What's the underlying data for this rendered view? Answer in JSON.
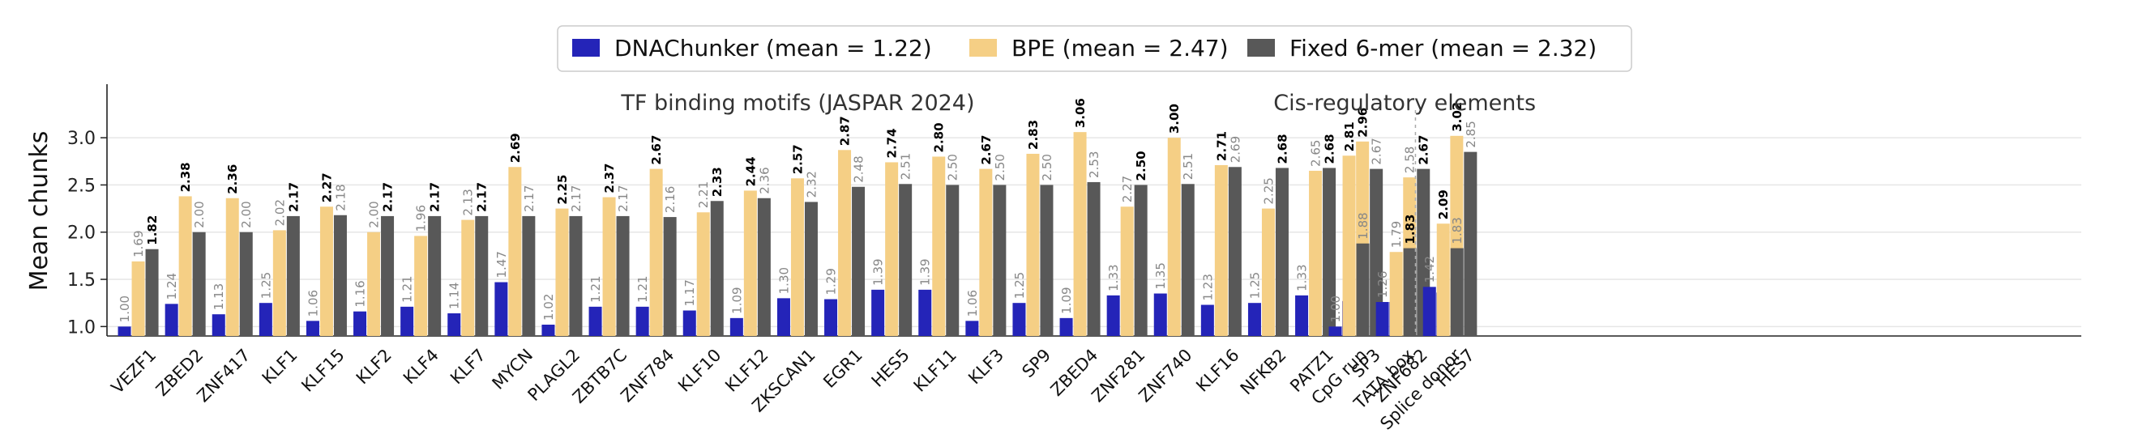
{
  "chart_data": {
    "type": "bar",
    "ylabel": "Mean chunks",
    "ylim": [
      0.9,
      3.55
    ],
    "yticks": [
      1.0,
      1.5,
      2.0,
      2.5,
      3.0
    ],
    "grid": "y",
    "legend_position": "top-center",
    "groups": [
      {
        "title": "TF binding motifs (JASPAR 2024)",
        "categories": [
          "VEZF1",
          "ZBED2",
          "ZNF417",
          "KLF1",
          "KLF15",
          "KLF2",
          "KLF4",
          "KLF7",
          "MYCN",
          "PLAGL2",
          "ZBTB7C",
          "ZNF784",
          "KLF10",
          "KLF12",
          "ZKSCAN1",
          "EGR1",
          "HES5",
          "KLF11",
          "KLF3",
          "SP9",
          "ZBED4",
          "ZNF281",
          "ZNF740",
          "KLF16",
          "NFKB2",
          "PATZ1",
          "SP3",
          "ZNF682",
          "HES7"
        ]
      },
      {
        "title": "Cis-regulatory elements",
        "categories": [
          "CpG run",
          "TATA box",
          "Splice donor"
        ]
      }
    ],
    "series": [
      {
        "name": "DNAChunker",
        "legend_label": "DNAChunker  (mean = 1.22)",
        "color": "#2424b8",
        "values": [
          1.0,
          1.24,
          1.13,
          1.25,
          1.06,
          1.16,
          1.21,
          1.14,
          1.47,
          1.02,
          1.21,
          1.21,
          1.17,
          1.09,
          1.3,
          1.29,
          1.39,
          1.39,
          1.06,
          1.25,
          1.09,
          1.33,
          1.35,
          1.23,
          1.25,
          1.33,
          1.27,
          1.26,
          1.36,
          1.0,
          1.26,
          1.42
        ],
        "labels": [
          "1.00",
          "1.24",
          "1.13",
          "1.25",
          "1.06",
          "1.16",
          "1.21",
          "1.14",
          "1.47",
          "1.02",
          "1.21",
          "1.21",
          "1.17",
          "1.09",
          "1.30",
          "1.29",
          "1.39",
          "1.39",
          "1.06",
          "1.25",
          "1.09",
          "1.33",
          "1.35",
          "1.23",
          "1.25",
          "1.33",
          "1.27",
          "1.26",
          "1.36",
          "1.00",
          "1.26",
          "1.42"
        ]
      },
      {
        "name": "BPE",
        "legend_label": "BPE  (mean = 2.47)",
        "color": "#f5cf85",
        "values": [
          1.69,
          2.38,
          2.36,
          2.02,
          2.27,
          2.0,
          1.96,
          2.13,
          2.69,
          2.25,
          2.37,
          2.67,
          2.21,
          2.44,
          2.57,
          2.87,
          2.74,
          2.8,
          2.67,
          2.83,
          3.06,
          2.27,
          3.0,
          2.71,
          2.25,
          2.65,
          2.96,
          2.58,
          3.02,
          2.81,
          1.79,
          2.09
        ],
        "labels": [
          "1.69",
          "2.38",
          "2.36",
          "2.02",
          "2.27",
          "2.00",
          "1.96",
          "2.13",
          "2.69",
          "2.25",
          "2.37",
          "2.67",
          "2.21",
          "2.44",
          "2.57",
          "2.87",
          "2.74",
          "2.80",
          "2.67",
          "2.83",
          "3.06",
          "2.27",
          "3.00",
          "2.71",
          "2.25",
          "2.65",
          "2.96",
          "2.58",
          "3.02",
          "2.81",
          "1.79",
          "2.09"
        ]
      },
      {
        "name": "Fixed 6-mer",
        "legend_label": "Fixed 6-mer  (mean = 2.32)",
        "color": "#585858",
        "values": [
          1.82,
          2.0,
          2.0,
          2.17,
          2.18,
          2.17,
          2.17,
          2.17,
          2.17,
          2.17,
          2.17,
          2.16,
          2.33,
          2.36,
          2.32,
          2.48,
          2.51,
          2.5,
          2.5,
          2.5,
          2.53,
          2.5,
          2.51,
          2.69,
          2.68,
          2.68,
          2.67,
          2.67,
          2.85,
          1.88,
          1.83,
          1.83
        ],
        "labels": [
          "1.82",
          "2.00",
          "2.00",
          "2.17",
          "2.18",
          "2.17",
          "2.17",
          "2.17",
          "2.17",
          "2.17",
          "2.17",
          "2.16",
          "2.33",
          "2.36",
          "2.32",
          "2.48",
          "2.51",
          "2.50",
          "2.50",
          "2.50",
          "2.53",
          "2.50",
          "2.51",
          "2.69",
          "2.68",
          "2.68",
          "2.67",
          "2.67",
          "2.85",
          "1.88",
          "1.83",
          "1.83"
        ]
      }
    ],
    "best_label_color": "#000000",
    "other_label_color": "#888888"
  }
}
